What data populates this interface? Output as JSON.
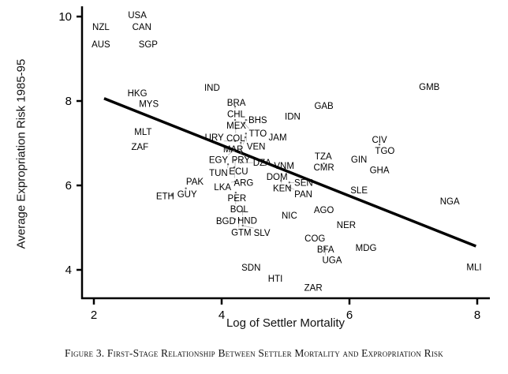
{
  "chart_data": {
    "type": "scatter",
    "title": "",
    "xlabel": "Log of Settler Mortality",
    "ylabel": "Average Expropriation Risk 1985-95",
    "xlim": [
      1.8,
      8.2
    ],
    "ylim": [
      3.3,
      10.25
    ],
    "xticks": [
      "2",
      "4",
      "6",
      "8"
    ],
    "yticks": [
      "10",
      "8",
      "6",
      "4"
    ],
    "grid": false,
    "caption": "Figure 3. First-Stage Relationship Between Settler Mortality and Expropriation Risk",
    "fit_line": {
      "x": [
        2.16,
        7.98
      ],
      "y": [
        8.06,
        4.56
      ]
    },
    "points": [
      {
        "label": "USA",
        "x": 2.68,
        "y": 10.04
      },
      {
        "label": "NZL",
        "x": 2.11,
        "y": 9.76
      },
      {
        "label": "CAN",
        "x": 2.75,
        "y": 9.76
      },
      {
        "label": "AUS",
        "x": 2.11,
        "y": 9.35
      },
      {
        "label": "SGP",
        "x": 2.85,
        "y": 9.35
      },
      {
        "label": "IND",
        "x": 3.85,
        "y": 8.32
      },
      {
        "label": "HKG",
        "x": 2.68,
        "y": 8.19
      },
      {
        "label": "MYS",
        "x": 2.86,
        "y": 7.98
      },
      {
        "label": "BRA",
        "x": 4.23,
        "y": 7.96
      },
      {
        "label": "CHL",
        "x": 4.21,
        "y": 7.87
      },
      {
        "label": "GAB",
        "x": 5.6,
        "y": 7.89
      },
      {
        "label": "GMB",
        "x": 7.25,
        "y": 8.34
      },
      {
        "label": "IDN",
        "x": 5.11,
        "y": 7.64
      },
      {
        "label": "MEX",
        "x": 4.21,
        "y": 7.55
      },
      {
        "label": "BHS",
        "x": 4.38,
        "y": 7.55
      },
      {
        "label": "TTO",
        "x": 4.35,
        "y": 7.48
      },
      {
        "label": "COL",
        "x": 4.22,
        "y": 7.35
      },
      {
        "label": "VEN",
        "x": 4.38,
        "y": 7.23
      },
      {
        "label": "MAR",
        "x": 4.37,
        "y": 7.14
      },
      {
        "label": "URY",
        "x": 4.21,
        "y": 7.05
      },
      {
        "label": "PRY",
        "x": 4.3,
        "y": 7.01
      },
      {
        "label": "JAM",
        "x": 4.84,
        "y": 7.14
      },
      {
        "label": "MLT",
        "x": 2.77,
        "y": 7.27
      },
      {
        "label": "ZAF",
        "x": 2.72,
        "y": 6.92
      },
      {
        "label": "EGY",
        "x": 4.19,
        "y": 6.82
      },
      {
        "label": "ECU",
        "x": 4.21,
        "y": 6.6
      },
      {
        "label": "DZA",
        "x": 4.3,
        "y": 6.54
      },
      {
        "label": "TUN",
        "x": 4.1,
        "y": 6.5
      },
      {
        "label": "ARG",
        "x": 4.2,
        "y": 6.43
      },
      {
        "label": "VNM",
        "x": 4.94,
        "y": 6.47
      },
      {
        "label": "TZA",
        "x": 5.59,
        "y": 6.69
      },
      {
        "label": "CMR",
        "x": 5.6,
        "y": 6.52
      },
      {
        "label": "GIN",
        "x": 6.15,
        "y": 6.62
      },
      {
        "label": "CIV",
        "x": 6.47,
        "y": 7.08
      },
      {
        "label": "TGO",
        "x": 6.47,
        "y": 6.97
      },
      {
        "label": "GHA",
        "x": 6.47,
        "y": 6.36
      },
      {
        "label": "DOM",
        "x": 4.84,
        "y": 6.24
      },
      {
        "label": "KEN",
        "x": 4.93,
        "y": 6.11
      },
      {
        "label": "SEN",
        "x": 5.06,
        "y": 6.07
      },
      {
        "label": "PAN",
        "x": 5.06,
        "y": 5.96
      },
      {
        "label": "LKA",
        "x": 4.21,
        "y": 6.09
      },
      {
        "label": "PAK",
        "x": 3.58,
        "y": 6.09
      },
      {
        "label": "GUY",
        "x": 3.44,
        "y": 5.93
      },
      {
        "label": "ETH",
        "x": 3.22,
        "y": 5.79
      },
      {
        "label": "PER",
        "x": 4.22,
        "y": 5.83
      },
      {
        "label": "BOL",
        "x": 4.22,
        "y": 5.7
      },
      {
        "label": "SLE",
        "x": 6.15,
        "y": 5.89
      },
      {
        "label": "NGA",
        "x": 7.57,
        "y": 5.63
      },
      {
        "label": "HND",
        "x": 4.33,
        "y": 5.38
      },
      {
        "label": "BGD",
        "x": 4.21,
        "y": 5.2
      },
      {
        "label": "GTM",
        "x": 4.27,
        "y": 5.2
      },
      {
        "label": "SLV",
        "x": 4.33,
        "y": 5.05
      },
      {
        "label": "NIC",
        "x": 5.06,
        "y": 5.29
      },
      {
        "label": "AGO",
        "x": 5.6,
        "y": 5.42
      },
      {
        "label": "NER",
        "x": 5.95,
        "y": 5.07
      },
      {
        "label": "COG",
        "x": 5.46,
        "y": 4.75
      },
      {
        "label": "BFA",
        "x": 5.6,
        "y": 4.52
      },
      {
        "label": "UGA",
        "x": 5.62,
        "y": 4.52
      },
      {
        "label": "MDG",
        "x": 6.26,
        "y": 4.52
      },
      {
        "label": "SDN",
        "x": 4.46,
        "y": 4.06
      },
      {
        "label": "HTI",
        "x": 4.84,
        "y": 3.79
      },
      {
        "label": "ZAR",
        "x": 5.46,
        "y": 3.55
      },
      {
        "label": "MLI",
        "x": 7.95,
        "y": 4.07
      }
    ]
  }
}
